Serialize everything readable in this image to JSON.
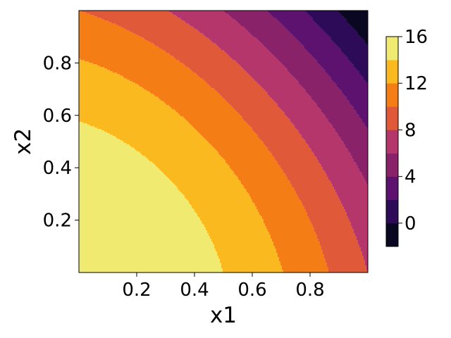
{
  "chart_data": {
    "type": "contourf",
    "title": "",
    "xlabel": "x1",
    "ylabel": "x2",
    "xlim": [
      0,
      1
    ],
    "ylim": [
      0,
      1
    ],
    "x_ticks": [
      0.2,
      0.4,
      0.6,
      0.8
    ],
    "x_tick_labels": [
      "0.2",
      "0.4",
      "0.6",
      "0.8"
    ],
    "y_ticks": [
      0.2,
      0.4,
      0.6,
      0.8
    ],
    "y_tick_labels": [
      "0.2",
      "0.4",
      "0.6",
      "0.8"
    ],
    "grid": false,
    "colormap": "inferno",
    "field_model": "z = 16 - 8*x1^2 - 6*x2^2 - 4*x1*x2",
    "levels": [
      -2,
      0,
      2,
      4,
      6,
      8,
      10,
      12,
      14,
      16
    ],
    "band_colors": [
      "#000004",
      "#320a5e",
      "#781c6d",
      "#a52c60",
      "#cf4446",
      "#ed6925",
      "#fb9b06",
      "#f7d13d",
      "#fcffa4"
    ],
    "visible_band_colors": [
      "#0a0722",
      "#2d0b59",
      "#5c126e",
      "#8a226a",
      "#b5366a",
      "#e05a3a",
      "#f57d15",
      "#fab91e",
      "#f0eb70"
    ],
    "colorbar": {
      "ticks": [
        0,
        4,
        8,
        12,
        16
      ],
      "tick_labels": [
        "0",
        "4",
        "8",
        "12",
        "16"
      ],
      "range": [
        -2,
        16
      ]
    }
  }
}
